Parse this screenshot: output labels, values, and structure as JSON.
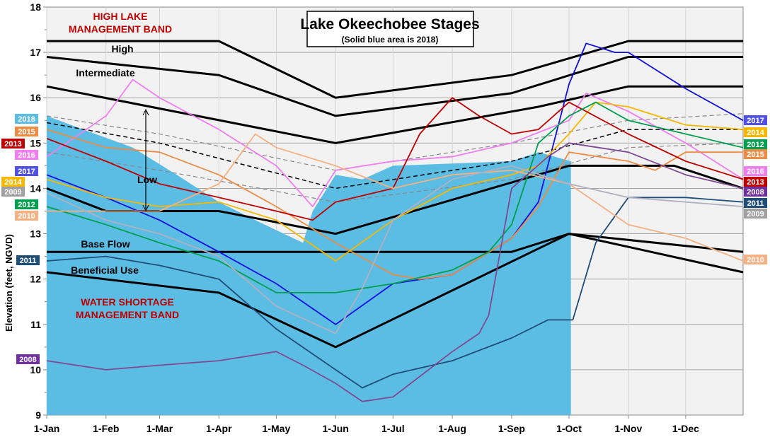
{
  "chart_data": {
    "type": "line",
    "title": "Lake Okeechobee Stages",
    "subtitle": "(Solid blue area is 2018)",
    "ylabel": "Elevation (feet, NGVD)",
    "xlabel": "",
    "ylim": [
      9,
      18
    ],
    "yticks": [
      "9",
      "10",
      "11",
      "12",
      "13",
      "14",
      "15",
      "16",
      "17",
      "18"
    ],
    "xticks": [
      [
        "01-01",
        "1-Jan"
      ],
      [
        "02-01",
        "1-Feb"
      ],
      [
        "03-01",
        "1-Mar"
      ],
      [
        "04-01",
        "1-Apr"
      ],
      [
        "05-01",
        "1-May"
      ],
      [
        "06-01",
        "1-Jun"
      ],
      [
        "07-01",
        "1-Jul"
      ],
      [
        "08-01",
        "1-Aug"
      ],
      [
        "09-01",
        "1-Sep"
      ],
      [
        "10-01",
        "1-Oct"
      ],
      [
        "11-01",
        "1-Nov"
      ],
      [
        "12-01",
        "1-Dec"
      ]
    ],
    "grid": true,
    "annotations": {
      "high_band": [
        "HIGH LAKE",
        "MANAGEMENT BAND"
      ],
      "shortage_band": [
        "WATER SHORTAGE",
        "MANAGEMENT BAND"
      ],
      "high": "High",
      "intermediate": "Intermediate",
      "low": "Low",
      "base_flow": "Base Flow",
      "beneficial_use": "Beneficial Use"
    },
    "area_2018": {
      "name": "2018",
      "color": "#5bbde4",
      "points": [
        [
          "01-01",
          15.6
        ],
        [
          "01-20",
          15.3
        ],
        [
          "02-15",
          14.9
        ],
        [
          "03-10",
          14.3
        ],
        [
          "04-01",
          13.7
        ],
        [
          "04-20",
          13.3
        ],
        [
          "05-15",
          12.8
        ],
        [
          "05-20",
          13.5
        ],
        [
          "06-01",
          14.3
        ],
        [
          "06-15",
          14.2
        ],
        [
          "07-01",
          14.5
        ],
        [
          "08-01",
          14.55
        ],
        [
          "09-01",
          14.6
        ],
        [
          "09-15",
          14.8
        ],
        [
          "10-02",
          14.6
        ]
      ]
    },
    "schedule": [
      {
        "name": "High",
        "points": [
          [
            "01-01",
            17.25
          ],
          [
            "04-01",
            17.25
          ],
          [
            "06-01",
            16.0
          ],
          [
            "09-01",
            16.5
          ],
          [
            "11-01",
            17.25
          ],
          [
            "12-31",
            17.25
          ]
        ]
      },
      {
        "name": "Intermediate",
        "points": [
          [
            "01-01",
            16.9
          ],
          [
            "04-01",
            16.5
          ],
          [
            "06-01",
            15.6
          ],
          [
            "09-01",
            16.1
          ],
          [
            "11-01",
            16.9
          ],
          [
            "12-31",
            16.9
          ]
        ]
      },
      {
        "name": "Low top",
        "points": [
          [
            "01-01",
            16.25
          ],
          [
            "06-01",
            15.0
          ],
          [
            "09-15",
            15.8
          ],
          [
            "11-01",
            16.25
          ],
          [
            "12-31",
            16.25
          ]
        ]
      },
      {
        "name": "Low",
        "points": [
          [
            "01-01",
            14.0
          ],
          [
            "02-01",
            13.5
          ],
          [
            "04-01",
            13.5
          ],
          [
            "06-01",
            13.0
          ],
          [
            "10-01",
            14.5
          ],
          [
            "11-25",
            14.5
          ],
          [
            "12-31",
            14.0
          ]
        ]
      },
      {
        "name": "Base Flow",
        "points": [
          [
            "01-01",
            12.6
          ],
          [
            "09-01",
            12.6
          ],
          [
            "10-01",
            13.0
          ],
          [
            "12-31",
            12.6
          ]
        ]
      },
      {
        "name": "Beneficial Use",
        "points": [
          [
            "01-01",
            12.15
          ],
          [
            "04-01",
            11.7
          ],
          [
            "06-01",
            10.5
          ],
          [
            "10-01",
            13.0
          ],
          [
            "12-31",
            12.15
          ]
        ]
      }
    ],
    "dashed": [
      {
        "color": "#000000",
        "points": [
          [
            "01-01",
            15.45
          ],
          [
            "03-01",
            15.0
          ],
          [
            "06-01",
            14.0
          ],
          [
            "09-01",
            14.6
          ],
          [
            "11-01",
            15.3
          ],
          [
            "12-31",
            15.3
          ]
        ]
      },
      {
        "color": "#888888",
        "points": [
          [
            "01-01",
            15.6
          ],
          [
            "03-01",
            15.2
          ],
          [
            "06-01",
            14.4
          ],
          [
            "09-01",
            15.0
          ],
          [
            "11-01",
            15.5
          ],
          [
            "12-31",
            15.65
          ]
        ]
      },
      {
        "color": "#888888",
        "points": [
          [
            "01-01",
            14.8
          ],
          [
            "03-01",
            14.4
          ],
          [
            "06-01",
            13.7
          ],
          [
            "09-01",
            14.2
          ],
          [
            "11-01",
            14.9
          ],
          [
            "12-31",
            15.0
          ]
        ]
      }
    ],
    "series": [
      {
        "name": "2017",
        "color": "#1010e0",
        "points": [
          [
            "01-01",
            14.3
          ],
          [
            "02-01",
            13.8
          ],
          [
            "03-01",
            13.3
          ],
          [
            "04-01",
            12.6
          ],
          [
            "05-01",
            11.9
          ],
          [
            "06-01",
            11.0
          ],
          [
            "07-01",
            11.9
          ],
          [
            "08-01",
            12.1
          ],
          [
            "09-01",
            12.9
          ],
          [
            "09-15",
            13.7
          ],
          [
            "10-01",
            16.3
          ],
          [
            "10-10",
            17.2
          ],
          [
            "10-25",
            17.0
          ],
          [
            "11-01",
            17.0
          ],
          [
            "12-01",
            16.2
          ],
          [
            "12-31",
            15.5
          ]
        ]
      },
      {
        "name": "2016",
        "color": "#f07ef0",
        "points": [
          [
            "01-01",
            14.7
          ],
          [
            "02-01",
            15.6
          ],
          [
            "02-15",
            16.4
          ],
          [
            "03-01",
            16.0
          ],
          [
            "04-01",
            15.3
          ],
          [
            "05-01",
            14.5
          ],
          [
            "05-20",
            13.6
          ],
          [
            "06-01",
            14.4
          ],
          [
            "07-01",
            14.6
          ],
          [
            "08-01",
            14.7
          ],
          [
            "09-01",
            15.0
          ],
          [
            "10-01",
            15.5
          ],
          [
            "10-10",
            16.1
          ],
          [
            "11-01",
            15.7
          ],
          [
            "12-01",
            15.0
          ],
          [
            "12-31",
            14.2
          ]
        ]
      },
      {
        "name": "2015",
        "color": "#ed8d45",
        "points": [
          [
            "01-01",
            15.3
          ],
          [
            "02-01",
            14.9
          ],
          [
            "03-01",
            14.8
          ],
          [
            "04-01",
            14.3
          ],
          [
            "05-01",
            13.6
          ],
          [
            "06-01",
            12.8
          ],
          [
            "07-01",
            12.1
          ],
          [
            "07-15",
            12.0
          ],
          [
            "08-01",
            12.1
          ],
          [
            "09-01",
            12.9
          ],
          [
            "09-15",
            13.6
          ],
          [
            "10-01",
            14.8
          ],
          [
            "11-01",
            14.6
          ],
          [
            "11-15",
            14.4
          ],
          [
            "12-01",
            14.8
          ],
          [
            "12-31",
            14.8
          ]
        ]
      },
      {
        "name": "2014",
        "color": "#f5b800",
        "points": [
          [
            "01-01",
            14.2
          ],
          [
            "02-01",
            13.8
          ],
          [
            "03-01",
            13.6
          ],
          [
            "04-01",
            13.7
          ],
          [
            "05-01",
            13.3
          ],
          [
            "06-01",
            12.4
          ],
          [
            "07-01",
            13.3
          ],
          [
            "08-01",
            14.0
          ],
          [
            "09-01",
            14.3
          ],
          [
            "09-15",
            14.5
          ],
          [
            "10-01",
            15.2
          ],
          [
            "10-15",
            15.9
          ],
          [
            "11-01",
            15.8
          ],
          [
            "12-01",
            15.4
          ],
          [
            "12-31",
            15.3
          ]
        ]
      },
      {
        "name": "2013",
        "color": "#c00000",
        "points": [
          [
            "01-01",
            15.1
          ],
          [
            "02-01",
            14.6
          ],
          [
            "03-01",
            14.1
          ],
          [
            "04-01",
            13.8
          ],
          [
            "05-01",
            13.5
          ],
          [
            "05-20",
            13.3
          ],
          [
            "06-01",
            13.7
          ],
          [
            "07-01",
            14.0
          ],
          [
            "07-15",
            15.2
          ],
          [
            "08-01",
            16.0
          ],
          [
            "08-15",
            15.6
          ],
          [
            "09-01",
            15.2
          ],
          [
            "09-15",
            15.3
          ],
          [
            "10-01",
            15.9
          ],
          [
            "11-01",
            15.2
          ],
          [
            "12-01",
            14.6
          ],
          [
            "12-31",
            14.2
          ]
        ]
      },
      {
        "name": "2012",
        "color": "#00a050",
        "points": [
          [
            "01-01",
            13.6
          ],
          [
            "02-01",
            13.2
          ],
          [
            "03-01",
            12.8
          ],
          [
            "04-01",
            12.4
          ],
          [
            "05-01",
            11.7
          ],
          [
            "06-01",
            11.7
          ],
          [
            "07-01",
            11.9
          ],
          [
            "08-01",
            12.2
          ],
          [
            "08-20",
            12.6
          ],
          [
            "09-01",
            13.2
          ],
          [
            "09-15",
            15.0
          ],
          [
            "10-01",
            15.6
          ],
          [
            "10-15",
            15.9
          ],
          [
            "11-01",
            15.5
          ],
          [
            "12-01",
            15.2
          ],
          [
            "12-31",
            14.9
          ]
        ]
      },
      {
        "name": "2011",
        "color": "#1f4e79",
        "points": [
          [
            "01-01",
            12.4
          ],
          [
            "02-01",
            12.5
          ],
          [
            "03-01",
            12.3
          ],
          [
            "04-01",
            12.0
          ],
          [
            "05-01",
            10.9
          ],
          [
            "06-01",
            10.0
          ],
          [
            "06-15",
            9.6
          ],
          [
            "07-01",
            9.9
          ],
          [
            "08-01",
            10.2
          ],
          [
            "09-01",
            10.7
          ],
          [
            "09-20",
            11.1
          ],
          [
            "10-03",
            11.1
          ],
          [
            "10-15",
            12.8
          ],
          [
            "11-01",
            13.8
          ],
          [
            "12-01",
            13.8
          ],
          [
            "12-31",
            13.7
          ]
        ]
      },
      {
        "name": "2010",
        "color": "#f4b183",
        "points": [
          [
            "01-01",
            13.5
          ],
          [
            "02-01",
            13.5
          ],
          [
            "03-01",
            13.5
          ],
          [
            "04-01",
            14.1
          ],
          [
            "04-20",
            15.2
          ],
          [
            "05-01",
            14.9
          ],
          [
            "06-01",
            14.5
          ],
          [
            "07-01",
            14.0
          ],
          [
            "08-01",
            14.3
          ],
          [
            "09-01",
            14.4
          ],
          [
            "10-01",
            14.1
          ],
          [
            "11-01",
            13.2
          ],
          [
            "12-01",
            12.9
          ],
          [
            "12-31",
            12.4
          ]
        ]
      },
      {
        "name": "2009",
        "color": "#b0b0c0",
        "points": [
          [
            "01-01",
            13.9
          ],
          [
            "02-01",
            13.3
          ],
          [
            "03-01",
            13.0
          ],
          [
            "04-01",
            12.5
          ],
          [
            "05-01",
            11.4
          ],
          [
            "06-01",
            10.8
          ],
          [
            "06-15",
            11.8
          ],
          [
            "07-01",
            13.3
          ],
          [
            "08-01",
            14.2
          ],
          [
            "09-01",
            14.5
          ],
          [
            "10-01",
            14.1
          ],
          [
            "11-01",
            13.8
          ],
          [
            "12-01",
            13.7
          ],
          [
            "12-31",
            13.6
          ]
        ]
      },
      {
        "name": "2008",
        "color": "#7f4a94",
        "points": [
          [
            "01-01",
            10.2
          ],
          [
            "02-01",
            10.0
          ],
          [
            "03-01",
            10.1
          ],
          [
            "04-01",
            10.2
          ],
          [
            "05-01",
            10.4
          ],
          [
            "05-15",
            10.1
          ],
          [
            "06-01",
            9.7
          ],
          [
            "06-15",
            9.3
          ],
          [
            "07-01",
            9.4
          ],
          [
            "08-01",
            10.4
          ],
          [
            "08-15",
            10.8
          ],
          [
            "08-20",
            11.2
          ],
          [
            "09-01",
            14.0
          ],
          [
            "09-20",
            14.7
          ],
          [
            "10-01",
            15.0
          ],
          [
            "11-01",
            14.8
          ],
          [
            "12-01",
            14.3
          ],
          [
            "12-31",
            14.0
          ]
        ]
      }
    ],
    "legend_left": [
      {
        "text": "2018",
        "color": "#5bbde4"
      },
      {
        "text": "2015",
        "color": "#ed8d45"
      },
      {
        "text": "2013",
        "color": "#c00000"
      },
      {
        "text": "2016",
        "color": "#f07ef0"
      },
      {
        "text": "2017",
        "color": "#5050e8"
      },
      {
        "text": "2014",
        "color": "#f5b800"
      },
      {
        "text": "2009",
        "color": "#a0a0a0"
      },
      {
        "text": "2012",
        "color": "#00a050"
      },
      {
        "text": "2010",
        "color": "#f4b183"
      },
      {
        "text": "2011",
        "color": "#1f4e79"
      },
      {
        "text": "2008",
        "color": "#7030a0"
      }
    ],
    "legend_right": [
      {
        "text": "2017",
        "color": "#5050e8"
      },
      {
        "text": "2014",
        "color": "#f5b800"
      },
      {
        "text": "2012",
        "color": "#00a050"
      },
      {
        "text": "2015",
        "color": "#ed8d45"
      },
      {
        "text": "2016",
        "color": "#f07ef0"
      },
      {
        "text": "2013",
        "color": "#c00000"
      },
      {
        "text": "2008",
        "color": "#7030a0"
      },
      {
        "text": "2011",
        "color": "#1f4e79"
      },
      {
        "text": "2009",
        "color": "#a0a0a0"
      },
      {
        "text": "2010",
        "color": "#f4b183"
      }
    ]
  }
}
